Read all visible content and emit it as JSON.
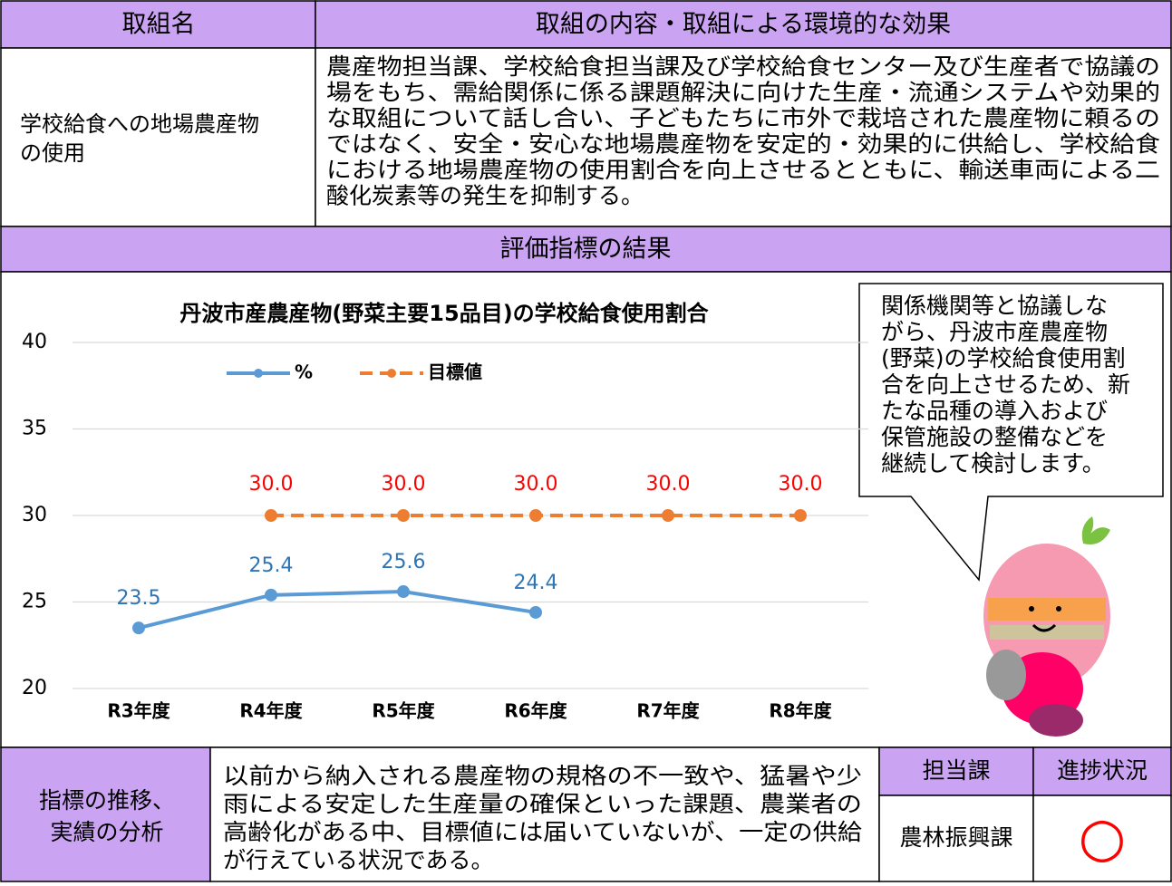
{
  "header": {
    "name": "取組名",
    "content": "取組の内容・取組による環境的な効果"
  },
  "initiative": {
    "name_lines": [
      "学校給食への地場農産物",
      "の使用"
    ],
    "content_lines": [
      "農産物担当課、学校給食担当課及び学校給食センター及び生産者で協議の",
      "場をもち、需給関係に係る課題解決に向けた生産・流通システムや効果的",
      "な取組について話し合い、子どもたちに市外で栽培された農産物に頼るの",
      "ではなく、安全・安心な地場農産物を安定的・効果的に供給し、学校給食",
      "における地場農産物の使用割合を向上させるとともに、輸送車両による二",
      "酸化炭素等の発生を抑制する。"
    ]
  },
  "results_header": "評価指標の結果",
  "chart_data": {
    "type": "line",
    "title": "丹波市産農産物(野菜主要15品目)の学校給食使用割合",
    "categories": [
      "R3年度",
      "R4年度",
      "R5年度",
      "R6年度",
      "R7年度",
      "R8年度"
    ],
    "series": [
      {
        "name": "%",
        "color": "#5b9bd5",
        "label_color": "#2e75b6",
        "dashed": false,
        "values": [
          23.5,
          25.4,
          25.6,
          24.4,
          null,
          null
        ]
      },
      {
        "name": "目標値",
        "color": "#ed7d31",
        "label_color": "#ff0000",
        "dashed": true,
        "values": [
          null,
          30,
          30,
          30,
          30,
          30
        ],
        "value_labels": [
          null,
          "30.0",
          "30.0",
          "30.0",
          "30.0",
          "30.0"
        ]
      }
    ],
    "ylim": [
      20,
      40
    ],
    "yticks": [
      20,
      25,
      30,
      35,
      40
    ],
    "grid": true
  },
  "callout_lines": [
    "関係機関等と協議しな",
    "がら、丹波市産農産物",
    "(野菜)の学校給食使用割",
    "合を向上させるため、新",
    "たな品種の導入および",
    "保管施設の整備などを",
    "継続して検討します。"
  ],
  "analysis": {
    "label_lines": [
      "指標の推移、",
      "実績の分析"
    ],
    "text_lines": [
      "以前から納入される農産物の規格の不一致や、猛暑や少",
      "雨による安定した生産量の確保といった課題、農業者の",
      "高齢化がある中、目標値には届いていないが、一定の供給",
      "が行えている状況である。"
    ]
  },
  "status": {
    "dept_header": "担当課",
    "progress_header": "進捗状況",
    "dept": "農林振興課",
    "progress": "○"
  }
}
